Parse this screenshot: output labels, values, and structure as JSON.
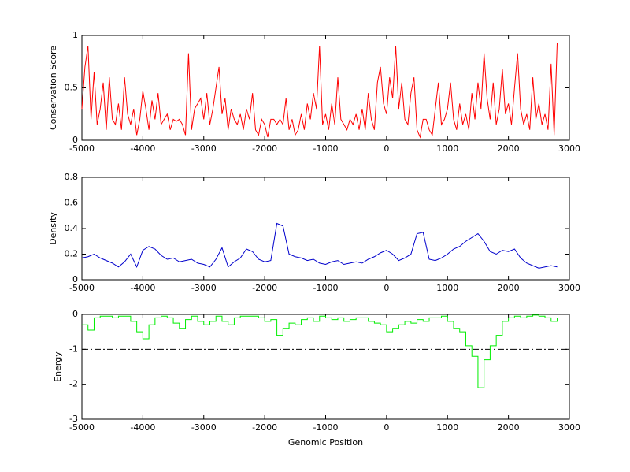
{
  "chart_data": [
    {
      "type": "line",
      "ylabel": "Conservation Score",
      "color": "#ff0000",
      "xlim": [
        -5000,
        3000
      ],
      "xticks": [
        -5000,
        -4000,
        -3000,
        -2000,
        -1000,
        0,
        1000,
        2000,
        3000
      ],
      "ylim": [
        0,
        1
      ],
      "yticks": [
        0,
        0.5,
        1
      ],
      "x": [
        -5000,
        -4950,
        -4900,
        -4850,
        -4800,
        -4750,
        -4700,
        -4650,
        -4600,
        -4550,
        -4500,
        -4450,
        -4400,
        -4350,
        -4300,
        -4250,
        -4200,
        -4150,
        -4100,
        -4050,
        -4000,
        -3950,
        -3900,
        -3850,
        -3800,
        -3750,
        -3700,
        -3650,
        -3600,
        -3550,
        -3500,
        -3450,
        -3400,
        -3350,
        -3300,
        -3250,
        -3200,
        -3150,
        -3100,
        -3050,
        -3000,
        -2950,
        -2900,
        -2850,
        -2800,
        -2750,
        -2700,
        -2650,
        -2600,
        -2550,
        -2500,
        -2450,
        -2400,
        -2350,
        -2300,
        -2250,
        -2200,
        -2150,
        -2100,
        -2050,
        -2000,
        -1950,
        -1900,
        -1850,
        -1800,
        -1750,
        -1700,
        -1650,
        -1600,
        -1550,
        -1500,
        -1450,
        -1400,
        -1350,
        -1300,
        -1250,
        -1200,
        -1150,
        -1100,
        -1050,
        -1000,
        -950,
        -900,
        -850,
        -800,
        -750,
        -700,
        -650,
        -600,
        -550,
        -500,
        -450,
        -400,
        -350,
        -300,
        -250,
        -200,
        -150,
        -100,
        -50,
        0,
        50,
        100,
        150,
        200,
        250,
        300,
        350,
        400,
        450,
        500,
        550,
        600,
        650,
        700,
        750,
        800,
        850,
        900,
        950,
        1000,
        1050,
        1100,
        1150,
        1200,
        1250,
        1300,
        1350,
        1400,
        1450,
        1500,
        1550,
        1600,
        1650,
        1700,
        1750,
        1800,
        1850,
        1900,
        1950,
        2000,
        2050,
        2100,
        2150,
        2200,
        2250,
        2300,
        2350,
        2400,
        2450,
        2500,
        2550,
        2600,
        2650,
        2700,
        2750,
        2800
      ],
      "values": [
        0.3,
        0.7,
        0.9,
        0.2,
        0.65,
        0.15,
        0.3,
        0.55,
        0.1,
        0.6,
        0.2,
        0.15,
        0.35,
        0.1,
        0.6,
        0.25,
        0.15,
        0.3,
        0.05,
        0.2,
        0.47,
        0.3,
        0.1,
        0.38,
        0.2,
        0.45,
        0.15,
        0.2,
        0.25,
        0.1,
        0.2,
        0.18,
        0.2,
        0.15,
        0.05,
        0.83,
        0.1,
        0.3,
        0.35,
        0.4,
        0.2,
        0.45,
        0.15,
        0.3,
        0.5,
        0.7,
        0.25,
        0.4,
        0.1,
        0.3,
        0.2,
        0.15,
        0.25,
        0.1,
        0.3,
        0.2,
        0.45,
        0.1,
        0.05,
        0.2,
        0.15,
        0.03,
        0.2,
        0.2,
        0.15,
        0.2,
        0.15,
        0.4,
        0.1,
        0.2,
        0.05,
        0.1,
        0.25,
        0.1,
        0.35,
        0.2,
        0.45,
        0.3,
        0.9,
        0.15,
        0.25,
        0.1,
        0.35,
        0.15,
        0.6,
        0.2,
        0.15,
        0.1,
        0.2,
        0.15,
        0.25,
        0.1,
        0.3,
        0.1,
        0.45,
        0.2,
        0.1,
        0.55,
        0.7,
        0.35,
        0.25,
        0.6,
        0.4,
        0.9,
        0.3,
        0.55,
        0.2,
        0.15,
        0.45,
        0.6,
        0.1,
        0.03,
        0.2,
        0.2,
        0.1,
        0.05,
        0.3,
        0.55,
        0.15,
        0.2,
        0.3,
        0.55,
        0.2,
        0.1,
        0.35,
        0.15,
        0.25,
        0.1,
        0.45,
        0.2,
        0.55,
        0.3,
        0.83,
        0.4,
        0.2,
        0.55,
        0.15,
        0.3,
        0.68,
        0.25,
        0.35,
        0.15,
        0.5,
        0.83,
        0.3,
        0.15,
        0.25,
        0.1,
        0.6,
        0.2,
        0.35,
        0.15,
        0.25,
        0.1,
        0.73,
        0.05,
        0.93
      ]
    },
    {
      "type": "line",
      "ylabel": "Density",
      "color": "#0000cc",
      "xlim": [
        -5000,
        3000
      ],
      "xticks": [
        -5000,
        -4000,
        -3000,
        -2000,
        -1000,
        0,
        1000,
        2000,
        3000
      ],
      "ylim": [
        0,
        0.8
      ],
      "yticks": [
        0,
        0.2,
        0.4,
        0.6,
        0.8
      ],
      "x": [
        -5000,
        -4900,
        -4800,
        -4700,
        -4600,
        -4500,
        -4400,
        -4300,
        -4200,
        -4100,
        -4000,
        -3900,
        -3800,
        -3700,
        -3600,
        -3500,
        -3400,
        -3300,
        -3200,
        -3100,
        -3000,
        -2900,
        -2800,
        -2700,
        -2600,
        -2500,
        -2400,
        -2300,
        -2200,
        -2100,
        -2000,
        -1900,
        -1800,
        -1700,
        -1600,
        -1500,
        -1400,
        -1300,
        -1200,
        -1100,
        -1000,
        -900,
        -800,
        -700,
        -600,
        -500,
        -400,
        -300,
        -200,
        -100,
        0,
        100,
        200,
        300,
        400,
        500,
        600,
        700,
        800,
        900,
        1000,
        1100,
        1200,
        1300,
        1400,
        1500,
        1600,
        1700,
        1800,
        1900,
        2000,
        2100,
        2200,
        2300,
        2400,
        2500,
        2600,
        2700,
        2800
      ],
      "values": [
        0.17,
        0.18,
        0.2,
        0.17,
        0.15,
        0.13,
        0.1,
        0.14,
        0.2,
        0.1,
        0.23,
        0.26,
        0.24,
        0.19,
        0.16,
        0.17,
        0.14,
        0.15,
        0.16,
        0.13,
        0.12,
        0.1,
        0.16,
        0.25,
        0.1,
        0.14,
        0.17,
        0.24,
        0.22,
        0.16,
        0.14,
        0.15,
        0.44,
        0.42,
        0.2,
        0.18,
        0.17,
        0.15,
        0.16,
        0.13,
        0.12,
        0.14,
        0.15,
        0.12,
        0.13,
        0.14,
        0.13,
        0.16,
        0.18,
        0.21,
        0.23,
        0.2,
        0.15,
        0.17,
        0.2,
        0.36,
        0.37,
        0.16,
        0.15,
        0.17,
        0.2,
        0.24,
        0.26,
        0.3,
        0.33,
        0.36,
        0.3,
        0.22,
        0.2,
        0.23,
        0.22,
        0.24,
        0.17,
        0.13,
        0.11,
        0.09,
        0.1,
        0.11,
        0.1
      ]
    },
    {
      "type": "step",
      "ylabel": "Energy",
      "xlabel": "Genomic Position",
      "color": "#00ee00",
      "xlim": [
        -5000,
        3000
      ],
      "xticks": [
        -5000,
        -4000,
        -3000,
        -2000,
        -1000,
        0,
        1000,
        2000,
        3000
      ],
      "ylim": [
        -3,
        0
      ],
      "yticks": [
        -3,
        -2,
        -1,
        0
      ],
      "reference_y": -1,
      "x": [
        -5000,
        -4900,
        -4800,
        -4700,
        -4600,
        -4500,
        -4400,
        -4300,
        -4200,
        -4100,
        -4000,
        -3900,
        -3800,
        -3700,
        -3600,
        -3500,
        -3400,
        -3300,
        -3200,
        -3100,
        -3000,
        -2900,
        -2800,
        -2700,
        -2600,
        -2500,
        -2400,
        -2300,
        -2200,
        -2100,
        -2000,
        -1900,
        -1800,
        -1700,
        -1600,
        -1500,
        -1400,
        -1300,
        -1200,
        -1100,
        -1000,
        -900,
        -800,
        -700,
        -600,
        -500,
        -400,
        -300,
        -200,
        -100,
        0,
        100,
        200,
        300,
        400,
        500,
        600,
        700,
        800,
        900,
        1000,
        1100,
        1200,
        1300,
        1400,
        1500,
        1600,
        1700,
        1800,
        1900,
        2000,
        2100,
        2200,
        2300,
        2400,
        2500,
        2600,
        2700,
        2800
      ],
      "values": [
        -0.3,
        -0.45,
        -0.1,
        -0.05,
        -0.05,
        -0.1,
        -0.05,
        -0.05,
        -0.2,
        -0.5,
        -0.7,
        -0.3,
        -0.1,
        -0.05,
        -0.1,
        -0.25,
        -0.4,
        -0.15,
        -0.05,
        -0.2,
        -0.3,
        -0.2,
        -0.05,
        -0.2,
        -0.3,
        -0.1,
        -0.05,
        -0.05,
        -0.05,
        -0.1,
        -0.2,
        -0.15,
        -0.6,
        -0.4,
        -0.25,
        -0.3,
        -0.15,
        -0.1,
        -0.2,
        -0.05,
        -0.1,
        -0.15,
        -0.1,
        -0.2,
        -0.15,
        -0.1,
        -0.1,
        -0.2,
        -0.25,
        -0.3,
        -0.5,
        -0.4,
        -0.3,
        -0.2,
        -0.25,
        -0.15,
        -0.2,
        -0.1,
        -0.1,
        -0.05,
        -0.2,
        -0.4,
        -0.5,
        -0.9,
        -1.2,
        -2.1,
        -1.3,
        -0.9,
        -0.6,
        -0.2,
        -0.1,
        -0.05,
        -0.1,
        -0.05,
        -0.02,
        -0.05,
        -0.1,
        -0.2,
        -0.1
      ]
    }
  ]
}
